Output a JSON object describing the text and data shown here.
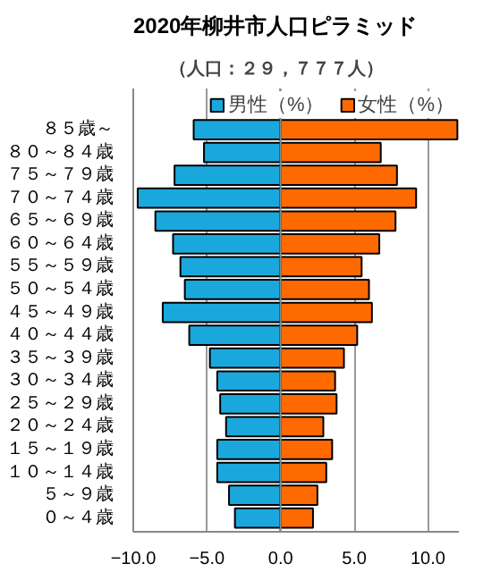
{
  "chart_data": {
    "type": "bar",
    "orientation": "horizontal",
    "title": "2020年柳井市人口ピラミッド",
    "subtitle": "（人口：２９，７７７人）",
    "categories": [
      "８５歳～",
      "８０～８４歳",
      "７５～７９歳",
      "７０～７４歳",
      "６５～６９歳",
      "６０～６４歳",
      "５５～５９歳",
      "５０～５４歳",
      "４５～４９歳",
      "４０～４４歳",
      "３５～３９歳",
      "３０～３４歳",
      "２５～２９歳",
      "２０～２４歳",
      "１５～１９歳",
      "１０～１４歳",
      "５～９歳",
      "０～４歳"
    ],
    "series": [
      {
        "name": "男性（%）",
        "color": "#1aa8dc",
        "values": [
          -5.9,
          -5.2,
          -7.2,
          -9.7,
          -8.5,
          -7.3,
          -6.8,
          -6.5,
          -8.0,
          -6.2,
          -4.8,
          -4.3,
          -4.1,
          -3.7,
          -4.3,
          -4.3,
          -3.5,
          -3.1
        ]
      },
      {
        "name": "女性（%）",
        "color": "#ff6a00",
        "values": [
          12.0,
          6.8,
          7.9,
          9.2,
          7.8,
          6.7,
          5.5,
          6.0,
          6.2,
          5.2,
          4.3,
          3.7,
          3.8,
          2.9,
          3.5,
          3.1,
          2.5,
          2.2
        ]
      }
    ],
    "xlim": [
      -10,
      12.1
    ],
    "xticks": [
      {
        "value": -10,
        "label": "−10.0"
      },
      {
        "value": -5,
        "label": "−5.0"
      },
      {
        "value": 0,
        "label": "0.0"
      },
      {
        "value": 5,
        "label": "5.0"
      },
      {
        "value": 10,
        "label": "10.0"
      }
    ],
    "grid": "x",
    "stacked": true,
    "legend": "top right"
  }
}
